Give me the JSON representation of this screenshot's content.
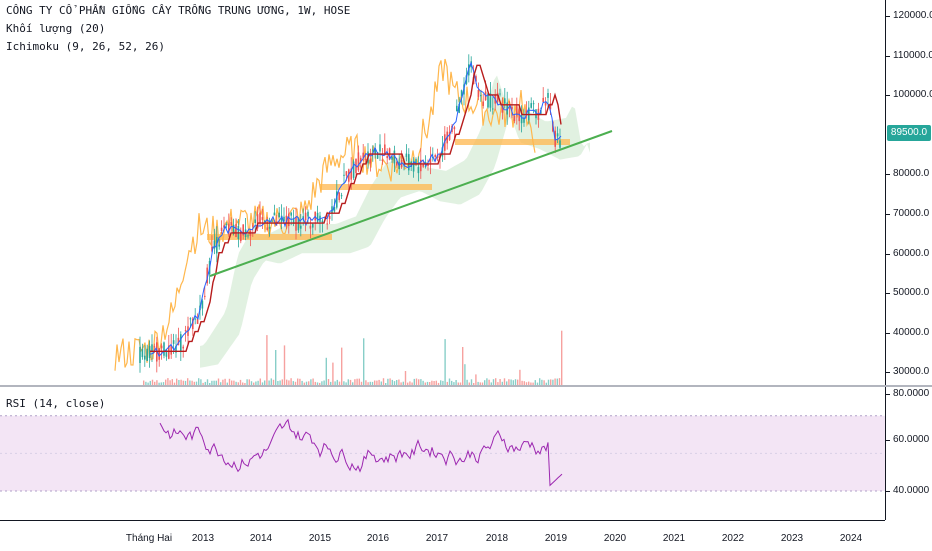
{
  "legend": {
    "symbol": "CÔNG TY CỔ PHẦN GIỐNG CÂY TRỒNG TRUNG ƯƠNG, 1W, HOSE",
    "volume": "Khối lượng (20)",
    "ichimoku": "Ichimoku (9, 26, 52, 26)"
  },
  "rsi_legend": "RSI (14, close)",
  "price_scale": [
    "120000.0",
    "110000.0",
    "100000.0",
    "90000.0",
    "80000.0",
    "70000.0",
    "60000.0",
    "50000.0",
    "40000.0",
    "30000.0"
  ],
  "current_price": "89500.0",
  "rsi_scale": [
    "80.0000",
    "60.0000",
    "40.0000"
  ],
  "time_axis": [
    "Tháng Hai",
    "2013",
    "2014",
    "2015",
    "2016",
    "2017",
    "2018",
    "2019",
    "2020",
    "2021",
    "2022",
    "2023",
    "2024"
  ],
  "colors": {
    "up": "#26a69a",
    "down": "#ef5350",
    "tenkan": "#2962ff",
    "kijun": "#b71c1c",
    "chikou": "#43a047",
    "lagging": "#ffb74d",
    "cloud_up": "#c8e6c9",
    "cloud_down": "#ffcdd2",
    "trendline": "#4caf50",
    "zone": "#ffb74d",
    "rsi": "#9c27b0",
    "rsi_band": "#f3e5f5"
  }
}
